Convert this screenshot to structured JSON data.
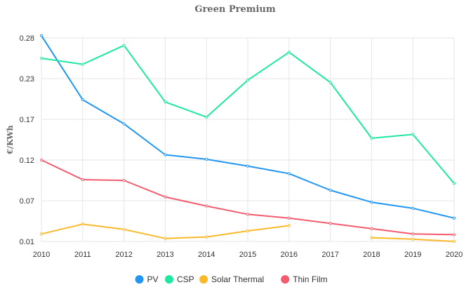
{
  "chart_data": {
    "type": "line",
    "title": "Green Premium",
    "xlabel": "",
    "ylabel": "€/KWh",
    "x": [
      "2010",
      "2011",
      "2012",
      "2013",
      "2014",
      "2015",
      "2016",
      "2017",
      "2018",
      "2019",
      "2020"
    ],
    "y_ticks": [
      "0.01",
      "0.07",
      "0.12",
      "0.17",
      "0.23",
      "0.28"
    ],
    "ylim": [
      0.01,
      0.29
    ],
    "grid": true,
    "legend_position": "bottom",
    "series": [
      {
        "name": "PV",
        "color": "#2196f3",
        "values": [
          0.283,
          0.198,
          0.166,
          0.125,
          0.119,
          0.11,
          0.1,
          0.078,
          0.062,
          0.054,
          0.041
        ]
      },
      {
        "name": "CSP",
        "color": "#1de9a0",
        "values": [
          0.253,
          0.245,
          0.27,
          0.195,
          0.175,
          0.224,
          0.261,
          0.221,
          0.147,
          0.152,
          0.087
        ]
      },
      {
        "name": "Solar Thermal",
        "color": "#fbb828",
        "values": [
          0.02,
          0.033,
          0.026,
          0.014,
          0.016,
          0.024,
          0.031,
          null,
          0.015,
          0.013,
          0.01
        ]
      },
      {
        "name": "Thin Film",
        "color": "#f45b6e",
        "values": [
          0.118,
          0.092,
          0.091,
          0.069,
          0.057,
          0.046,
          0.041,
          0.034,
          0.027,
          0.02,
          0.019
        ]
      }
    ]
  }
}
